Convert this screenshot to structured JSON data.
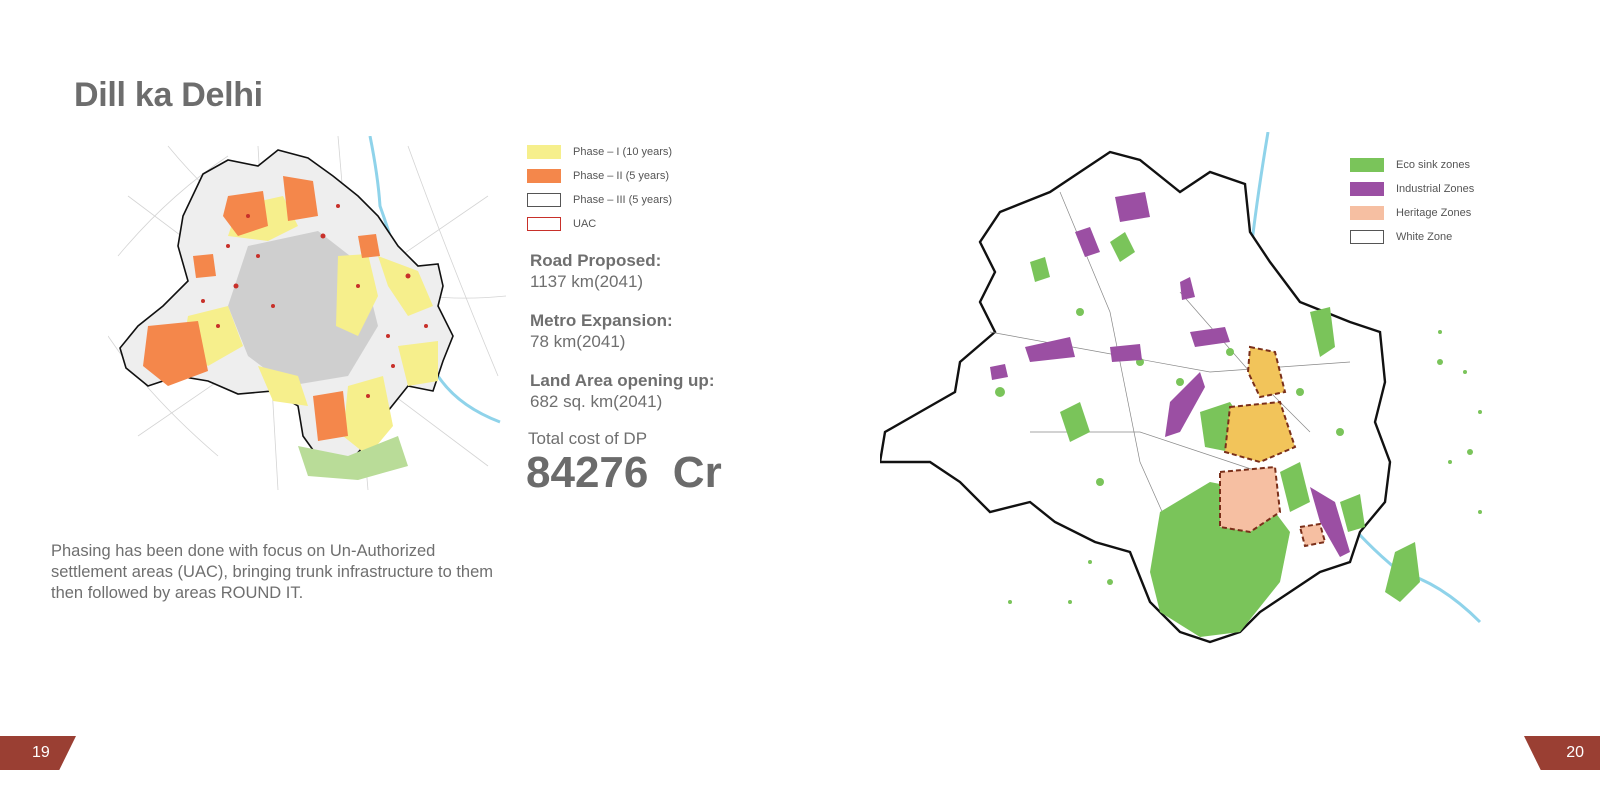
{
  "page": {
    "title": "Dill ka Delhi",
    "page_left": "19",
    "page_right": "20"
  },
  "legend_left": [
    {
      "label": "Phase – I (10 years)",
      "color": "#f6ef8c",
      "border": "#f6ef8c"
    },
    {
      "label": "Phase – II (5 years)",
      "color": "#f4874b",
      "border": "#f4874b"
    },
    {
      "label": "Phase – III (5 years)",
      "color": "#ffffff",
      "border": "#555555"
    },
    {
      "label": "UAC",
      "color": "#ffffff",
      "border": "#c8302a"
    }
  ],
  "stats": {
    "road_label": "Road Proposed:",
    "road_value": "1137 km(2041)",
    "metro_label": "Metro Expansion:",
    "metro_value": "78 km(2041)",
    "land_label": "Land Area opening up:",
    "land_value": "682 sq. km(2041)",
    "total_cost_label": "Total cost of DP",
    "total_cost_value": "84276  Cr"
  },
  "phasing_note": "Phasing has been done with focus on Un-Authorized settlement areas (UAC), bringing trunk infrastructure to them then followed by areas ROUND IT.",
  "legend_right": [
    {
      "label": "Eco sink zones",
      "color": "#7ac45a",
      "border": "#7ac45a"
    },
    {
      "label": "Industrial Zones",
      "color": "#9b4fa3",
      "border": "#9b4fa3"
    },
    {
      "label": "Heritage Zones",
      "color": "#f6bfa2",
      "border": "#f6bfa2"
    },
    {
      "label": "White Zone",
      "color": "#ffffff",
      "border": "#555555"
    }
  ]
}
